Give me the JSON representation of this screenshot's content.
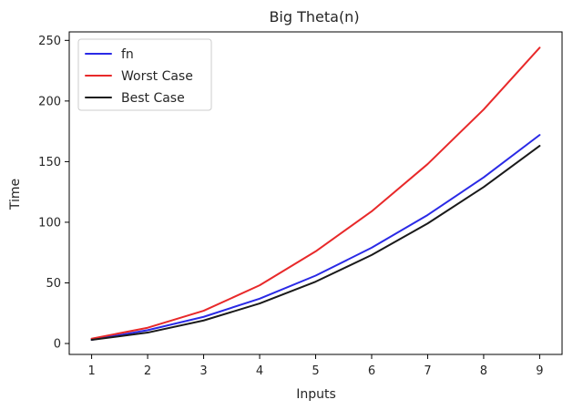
{
  "chart_data": {
    "type": "line",
    "title": "Big Theta(n)",
    "xlabel": "Inputs",
    "ylabel": "Time",
    "x": [
      1,
      2,
      3,
      4,
      5,
      6,
      7,
      8,
      9
    ],
    "xlim": [
      0.6,
      9.4
    ],
    "ylim": [
      -9,
      257
    ],
    "xticks": [
      1,
      2,
      3,
      4,
      5,
      6,
      7,
      8,
      9
    ],
    "yticks": [
      0,
      50,
      100,
      150,
      200,
      250
    ],
    "grid": false,
    "legend_position": "top-left",
    "series": [
      {
        "name": "fn",
        "color": "#2a2ae6",
        "values": [
          3,
          11,
          22,
          37,
          56,
          79,
          106,
          137,
          172
        ]
      },
      {
        "name": "Worst Case",
        "color": "#e8292a",
        "values": [
          4,
          13,
          27,
          48,
          76,
          109,
          148,
          193,
          244
        ]
      },
      {
        "name": "Best Case",
        "color": "#1a1a1a",
        "values": [
          3,
          9,
          19,
          33,
          51,
          73,
          99,
          129,
          163
        ]
      }
    ]
  }
}
